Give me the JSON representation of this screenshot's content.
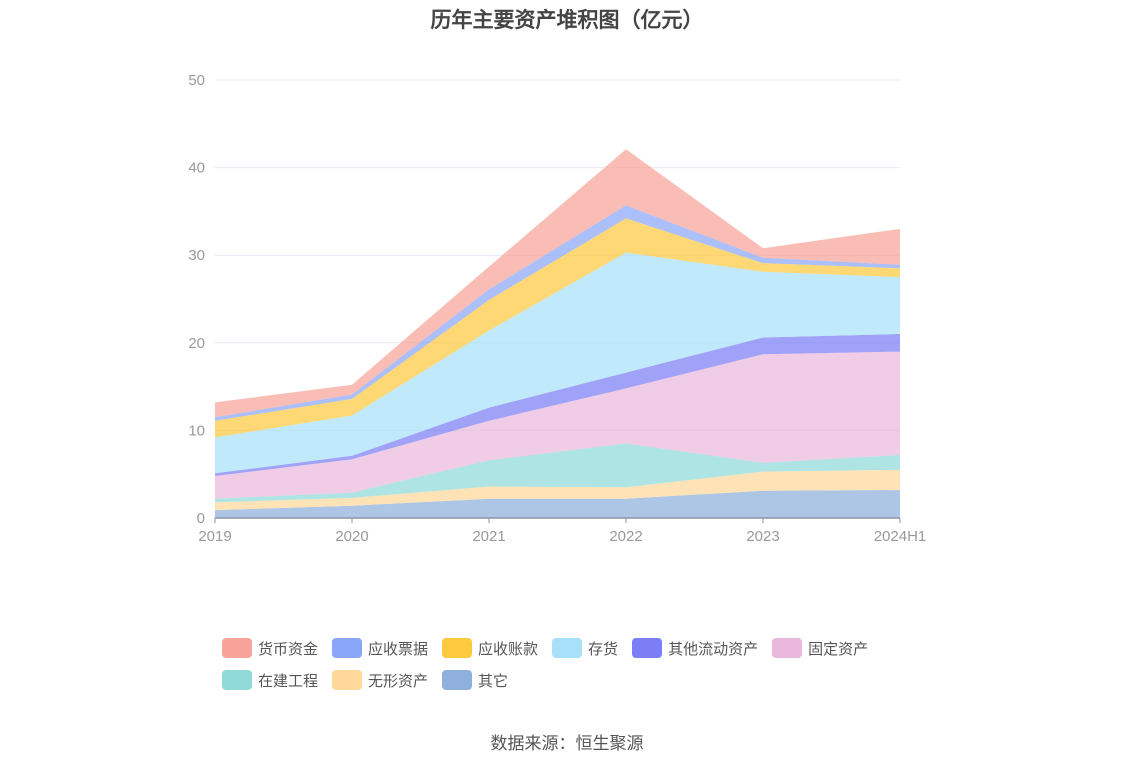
{
  "title": "历年主要资产堆积图（亿元）",
  "source": "数据来源：恒生聚源",
  "chart_data": {
    "type": "area",
    "stacked": true,
    "title": "历年主要资产堆积图（亿元）",
    "categories": [
      "2019",
      "2020",
      "2021",
      "2022",
      "2023",
      "2024H1"
    ],
    "ylim": [
      0,
      50
    ],
    "yticks": [
      0,
      10,
      20,
      30,
      40,
      50
    ],
    "grid": true,
    "legend_position": "bottom",
    "series": [
      {
        "name": "其它",
        "color": "#8fb0dc",
        "values": [
          0.9,
          1.4,
          2.2,
          2.2,
          3.1,
          3.2
        ]
      },
      {
        "name": "无形资产",
        "color": "#ffd89a",
        "values": [
          0.9,
          0.9,
          1.4,
          1.3,
          2.2,
          2.3
        ]
      },
      {
        "name": "在建工程",
        "color": "#8fd9d9",
        "values": [
          0.4,
          0.6,
          3.0,
          5.0,
          1.0,
          1.7
        ]
      },
      {
        "name": "固定资产",
        "color": "#eab8dc",
        "values": [
          2.6,
          3.8,
          4.5,
          6.3,
          12.4,
          11.8
        ]
      },
      {
        "name": "其他流动资产",
        "color": "#7b7ef5",
        "values": [
          0.3,
          0.4,
          1.5,
          1.8,
          1.9,
          2.0
        ]
      },
      {
        "name": "存货",
        "color": "#a8e0fa",
        "values": [
          4.1,
          4.6,
          8.8,
          13.7,
          7.5,
          6.5
        ]
      },
      {
        "name": "应收账款",
        "color": "#fdc93e",
        "values": [
          1.9,
          1.9,
          3.5,
          3.9,
          1.0,
          1.0
        ]
      },
      {
        "name": "应收票据",
        "color": "#8aa6f8",
        "values": [
          0.4,
          0.5,
          1.2,
          1.5,
          0.6,
          0.4
        ]
      },
      {
        "name": "货币资金",
        "color": "#f8a39a",
        "values": [
          1.7,
          1.1,
          2.6,
          6.4,
          1.1,
          4.1
        ]
      }
    ]
  },
  "legend": [
    [
      "货币资金",
      "应收票据",
      "应收账款",
      "存货",
      "其他流动资产",
      "固定资产"
    ],
    [
      "在建工程",
      "无形资产",
      "其它"
    ]
  ]
}
